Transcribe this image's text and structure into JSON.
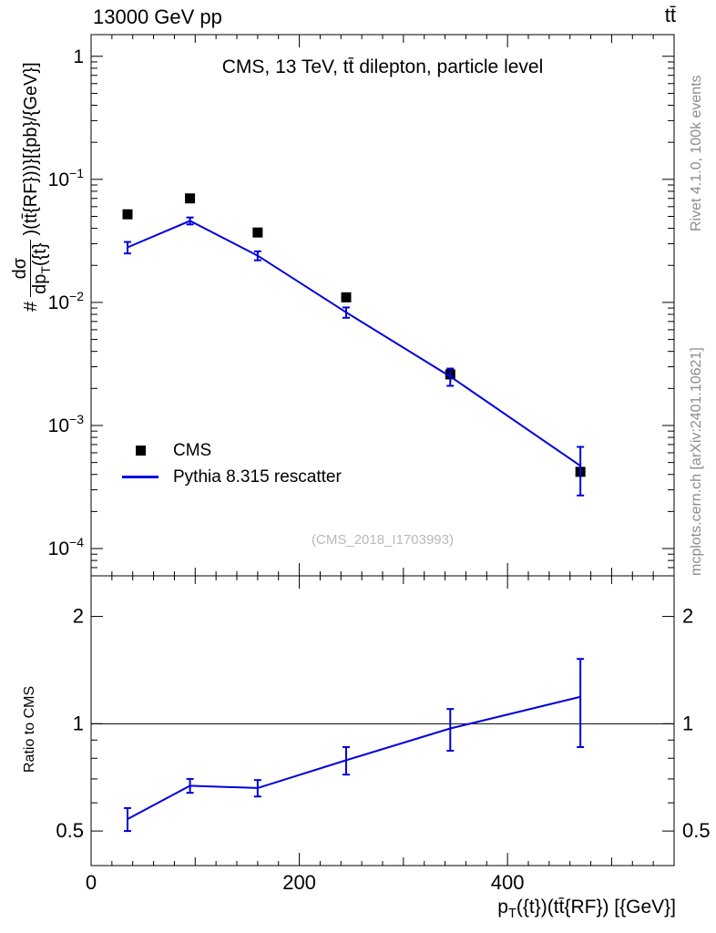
{
  "header": {
    "left": "13000 GeV pp",
    "right": "tt̄"
  },
  "margins": {
    "rivet": "Rivet 4.1.0,  100k events",
    "mcplots": "mcplots.cern.ch [arXiv:2401.10621]"
  },
  "main": {
    "title": "CMS, 13 TeV, tt̄ dilepton, particle level",
    "watermark": "(CMS_2018_I1703993)",
    "ylabel": {
      "prefix": "#",
      "num": "dσ",
      "den_pre": "dp",
      "den_sub": "T",
      "den_post": "({t}",
      "suffix": ")(tt̄{RF}))}[{pb}/{GeV}]"
    },
    "xlabel": {
      "pre": "p",
      "sub": "T",
      "post": "({t})(tt̄{RF}) [{GeV}]"
    }
  },
  "ratio_panel": {
    "ylabel": "Ratio to CMS"
  },
  "legend": {
    "items": [
      {
        "label": "CMS",
        "marker": "square",
        "color": "#000000"
      },
      {
        "label": "Pythia 8.315 rescatter",
        "marker": "line",
        "color": "#0000dd"
      }
    ]
  },
  "chart_data": [
    {
      "type": "line",
      "title": "CMS, 13 TeV, ttbar dilepton, particle level",
      "xlabel": "pT({t})(ttbar{RF}) [{GeV}]",
      "ylabel": "#dsigma/dpT({t})(ttbar{RF}))}[{pb}/{GeV}]",
      "yscale": "log",
      "grid": false,
      "legend_position": "lower left",
      "xlim": [
        0,
        560
      ],
      "ylim": [
        6e-05,
        1.5
      ],
      "x_ticks": [
        0,
        200,
        400
      ],
      "y_major_ticks": [
        1,
        0.1,
        0.01,
        0.001,
        0.0001
      ],
      "series": [
        {
          "name": "CMS",
          "type": "scatter",
          "marker": "square",
          "color": "#000000",
          "x": [
            35,
            95,
            160,
            245,
            345,
            470
          ],
          "y": [
            0.052,
            0.07,
            0.037,
            0.011,
            0.0026,
            0.00042
          ]
        },
        {
          "name": "Pythia 8.315 rescatter",
          "type": "line",
          "color": "#0000dd",
          "x": [
            35,
            95,
            160,
            245,
            345,
            470
          ],
          "y": [
            0.028,
            0.046,
            0.024,
            0.0083,
            0.0025,
            0.00047
          ],
          "yerr": [
            0.003,
            0.003,
            0.002,
            0.0008,
            0.0004,
            0.0002
          ]
        }
      ]
    },
    {
      "type": "line",
      "ylabel": "Ratio to CMS",
      "yscale": "log",
      "grid": false,
      "xlim": [
        0,
        560
      ],
      "ylim": [
        0.4,
        2.6
      ],
      "x_ticks": [
        0,
        200,
        400
      ],
      "y_major_ticks": [
        0.5,
        1,
        2
      ],
      "reference_line": 1,
      "series": [
        {
          "name": "Pythia 8.315 rescatter / CMS",
          "type": "line",
          "color": "#0000dd",
          "x": [
            35,
            95,
            160,
            245,
            345,
            470
          ],
          "y": [
            0.54,
            0.67,
            0.66,
            0.79,
            0.97,
            1.19
          ],
          "yerr": [
            0.04,
            0.03,
            0.035,
            0.07,
            0.13,
            0.33
          ]
        }
      ]
    }
  ]
}
